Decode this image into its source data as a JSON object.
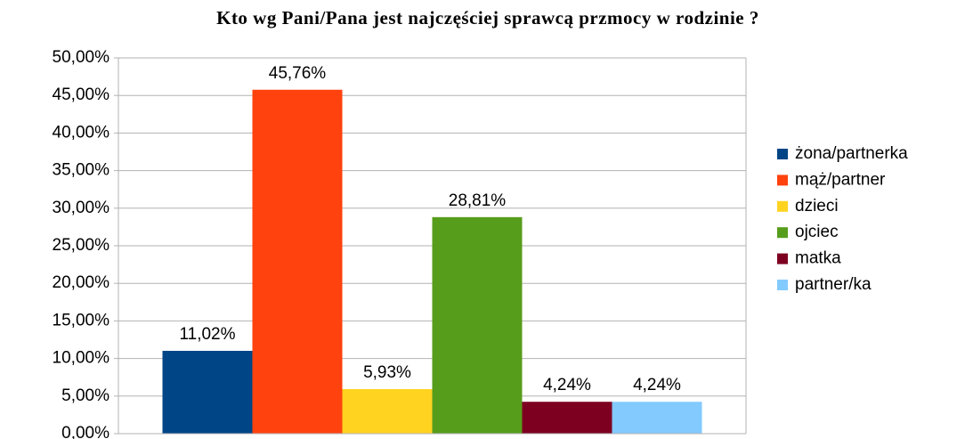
{
  "chart_data": {
    "type": "bar",
    "title": "Kto wg Pani/Pana jest najczęściej sprawcą przmocy w rodzinie ?",
    "series": [
      {
        "name": "żona/partnerka",
        "color": "#004586",
        "values": [
          11.02
        ],
        "value_labels": [
          "11,02%"
        ]
      },
      {
        "name": "mąż/partner",
        "color": "#ff420e",
        "values": [
          45.76
        ],
        "value_labels": [
          "45,76%"
        ]
      },
      {
        "name": "dzieci",
        "color": "#ffd320",
        "values": [
          5.93
        ],
        "value_labels": [
          "5,93%"
        ]
      },
      {
        "name": "ojciec",
        "color": "#579d1c",
        "values": [
          28.81
        ],
        "value_labels": [
          "28,81%"
        ]
      },
      {
        "name": "matka",
        "color": "#7e0021",
        "values": [
          4.24
        ],
        "value_labels": [
          "4,24%"
        ]
      },
      {
        "name": "partner/ka",
        "color": "#83caff",
        "values": [
          4.24
        ],
        "value_labels": [
          "4,24%"
        ]
      }
    ],
    "ylim": [
      0,
      50
    ],
    "yticks": [
      {
        "value": 0,
        "label": "0,00%"
      },
      {
        "value": 5,
        "label": "5,00%"
      },
      {
        "value": 10,
        "label": "10,00%"
      },
      {
        "value": 15,
        "label": "15,00%"
      },
      {
        "value": 20,
        "label": "20,00%"
      },
      {
        "value": 25,
        "label": "25,00%"
      },
      {
        "value": 30,
        "label": "30,00%"
      },
      {
        "value": 35,
        "label": "35,00%"
      },
      {
        "value": 40,
        "label": "40,00%"
      },
      {
        "value": 45,
        "label": "45,00%"
      },
      {
        "value": 50,
        "label": "50,00%"
      }
    ],
    "grid": true,
    "legend": "right"
  }
}
